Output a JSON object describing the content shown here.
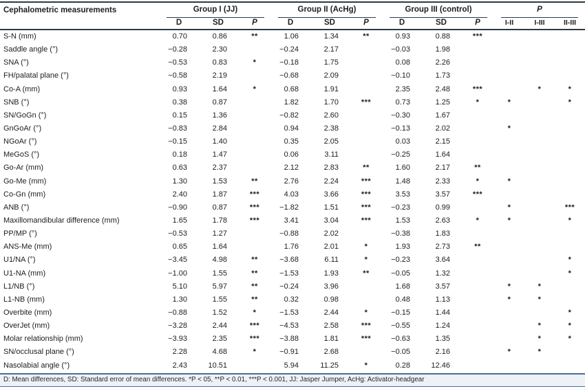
{
  "table": {
    "title_col": "Cephalometric measurements",
    "groups": [
      {
        "label": "Group I (JJ)"
      },
      {
        "label": "Group II (AcHg)"
      },
      {
        "label": "Group III (control)"
      }
    ],
    "p_group_label": "P",
    "sub_headers": {
      "d": "D",
      "sd": "SD",
      "p": "P"
    },
    "p_sub_headers": [
      "I-II",
      "I-III",
      "II-III"
    ],
    "rows": [
      {
        "label": "S-N (mm)",
        "g1": [
          "0.70",
          "0.86",
          "**"
        ],
        "g2": [
          "1.06",
          "1.34",
          "**"
        ],
        "g3": [
          "0.93",
          "0.88",
          "***"
        ],
        "p": [
          "",
          "",
          ""
        ]
      },
      {
        "label": "Saddle angle (°)",
        "g1": [
          "−0.28",
          "2.30",
          ""
        ],
        "g2": [
          "−0.24",
          "2.17",
          ""
        ],
        "g3": [
          "−0.03",
          "1.98",
          ""
        ],
        "p": [
          "",
          "",
          ""
        ]
      },
      {
        "label": "SNA (°)",
        "g1": [
          "−0.53",
          "0.83",
          "*"
        ],
        "g2": [
          "−0.18",
          "1.75",
          ""
        ],
        "g3": [
          "0.08",
          "2.26",
          ""
        ],
        "p": [
          "",
          "",
          ""
        ]
      },
      {
        "label": "FH/palatal plane (°)",
        "g1": [
          "−0.58",
          "2.19",
          ""
        ],
        "g2": [
          "−0.68",
          "2.09",
          ""
        ],
        "g3": [
          "−0.10",
          "1.73",
          ""
        ],
        "p": [
          "",
          "",
          ""
        ]
      },
      {
        "label": "Co-A (mm)",
        "g1": [
          "0.93",
          "1.64",
          "*"
        ],
        "g2": [
          "0.68",
          "1.91",
          ""
        ],
        "g3": [
          "2.35",
          "2.48",
          "***"
        ],
        "p": [
          "",
          "*",
          "*"
        ]
      },
      {
        "label": "SNB (°)",
        "g1": [
          "0.38",
          "0.87",
          ""
        ],
        "g2": [
          "1.82",
          "1.70",
          "***"
        ],
        "g3": [
          "0.73",
          "1.25",
          "*"
        ],
        "p": [
          "*",
          "",
          "*"
        ]
      },
      {
        "label": "SN/GoGn (°)",
        "g1": [
          "0.15",
          "1.36",
          ""
        ],
        "g2": [
          "−0.82",
          "2.60",
          ""
        ],
        "g3": [
          "−0.30",
          "1.67",
          ""
        ],
        "p": [
          "",
          "",
          ""
        ]
      },
      {
        "label": "GnGoAr (°)",
        "g1": [
          "−0.83",
          "2.84",
          ""
        ],
        "g2": [
          "0.94",
          "2.38",
          ""
        ],
        "g3": [
          "−0.13",
          "2.02",
          ""
        ],
        "p": [
          "*",
          "",
          ""
        ]
      },
      {
        "label": "NGoAr (°)",
        "g1": [
          "−0.15",
          "1.40",
          ""
        ],
        "g2": [
          "0.35",
          "2.05",
          ""
        ],
        "g3": [
          "0.03",
          "2.15",
          ""
        ],
        "p": [
          "",
          "",
          ""
        ]
      },
      {
        "label": "MeGoS (°)",
        "g1": [
          "0.18",
          "1.47",
          ""
        ],
        "g2": [
          "0.06",
          "3.11",
          ""
        ],
        "g3": [
          "−0.25",
          "1.64",
          ""
        ],
        "p": [
          "",
          "",
          ""
        ]
      },
      {
        "label": "Go-Ar (mm)",
        "g1": [
          "0.63",
          "2.37",
          ""
        ],
        "g2": [
          "2.12",
          "2.83",
          "**"
        ],
        "g3": [
          "1.60",
          "2.17",
          "**"
        ],
        "p": [
          "",
          "",
          ""
        ]
      },
      {
        "label": "Go-Me (mm)",
        "g1": [
          "1.30",
          "1.53",
          "**"
        ],
        "g2": [
          "2.76",
          "2.24",
          "***"
        ],
        "g3": [
          "1.48",
          "2.33",
          "*"
        ],
        "p": [
          "*",
          "",
          ""
        ]
      },
      {
        "label": "Co-Gn (mm)",
        "g1": [
          "2.40",
          "1.87",
          "***"
        ],
        "g2": [
          "4.03",
          "3.66",
          "***"
        ],
        "g3": [
          "3.53",
          "3.57",
          "***"
        ],
        "p": [
          "",
          "",
          ""
        ]
      },
      {
        "label": "ANB (°)",
        "g1": [
          "−0.90",
          "0.87",
          "***"
        ],
        "g2": [
          "−1.82",
          "1.51",
          "***"
        ],
        "g3": [
          "−0.23",
          "0.99",
          ""
        ],
        "p": [
          "*",
          "",
          "***"
        ]
      },
      {
        "label": "Maxillomandibular difference (mm)",
        "g1": [
          "1.65",
          "1.78",
          "***"
        ],
        "g2": [
          "3.41",
          "3.04",
          "***"
        ],
        "g3": [
          "1.53",
          "2.63",
          "*"
        ],
        "p": [
          "*",
          "",
          "*"
        ]
      },
      {
        "label": "PP/MP (°)",
        "g1": [
          "−0.53",
          "1.27",
          ""
        ],
        "g2": [
          "−0.88",
          "2.02",
          ""
        ],
        "g3": [
          "−0.38",
          "1.83",
          ""
        ],
        "p": [
          "",
          "",
          ""
        ]
      },
      {
        "label": "ANS-Me (mm)",
        "g1": [
          "0.65",
          "1.64",
          ""
        ],
        "g2": [
          "1.76",
          "2.01",
          "*"
        ],
        "g3": [
          "1.93",
          "2.73",
          "**"
        ],
        "p": [
          "",
          "",
          ""
        ]
      },
      {
        "label": "U1/NA (°)",
        "g1": [
          "−3.45",
          "4.98",
          "**"
        ],
        "g2": [
          "−3.68",
          "6.11",
          "*"
        ],
        "g3": [
          "−0.23",
          "3.64",
          ""
        ],
        "p": [
          "",
          "",
          "*"
        ]
      },
      {
        "label": "U1-NA (mm)",
        "g1": [
          "−1.00",
          "1.55",
          "**"
        ],
        "g2": [
          "−1.53",
          "1.93",
          "**"
        ],
        "g3": [
          "−0.05",
          "1.32",
          ""
        ],
        "p": [
          "",
          "",
          "*"
        ]
      },
      {
        "label": "L1/NB (°)",
        "g1": [
          "5.10",
          "5.97",
          "**"
        ],
        "g2": [
          "−0.24",
          "3.96",
          ""
        ],
        "g3": [
          "1.68",
          "3.57",
          ""
        ],
        "p": [
          "*",
          "*",
          ""
        ]
      },
      {
        "label": "L1-NB (mm)",
        "g1": [
          "1.30",
          "1.55",
          "**"
        ],
        "g2": [
          "0.32",
          "0.98",
          ""
        ],
        "g3": [
          "0.48",
          "1.13",
          ""
        ],
        "p": [
          "*",
          "*",
          ""
        ]
      },
      {
        "label": "Overbite (mm)",
        "g1": [
          "−0.88",
          "1.52",
          "*"
        ],
        "g2": [
          "−1.53",
          "2.44",
          "*"
        ],
        "g3": [
          "−0.15",
          "1.44",
          ""
        ],
        "p": [
          "",
          "",
          "*"
        ]
      },
      {
        "label": "OverJet (mm)",
        "g1": [
          "−3.28",
          "2.44",
          "***"
        ],
        "g2": [
          "−4.53",
          "2.58",
          "***"
        ],
        "g3": [
          "−0.55",
          "1.24",
          ""
        ],
        "p": [
          "",
          "*",
          "*"
        ]
      },
      {
        "label": "Molar relationship (mm)",
        "g1": [
          "−3.93",
          "2.35",
          "***"
        ],
        "g2": [
          "−3.88",
          "1.81",
          "***"
        ],
        "g3": [
          "−0.63",
          "1.35",
          ""
        ],
        "p": [
          "",
          "*",
          "*"
        ]
      },
      {
        "label": "SN/occlusal plane (°)",
        "g1": [
          "2.28",
          "4.68",
          "*"
        ],
        "g2": [
          "−0.91",
          "2.68",
          ""
        ],
        "g3": [
          "−0.05",
          "2.16",
          ""
        ],
        "p": [
          "*",
          "*",
          ""
        ]
      },
      {
        "label": "Nasolabial angle (°)",
        "g1": [
          "2.43",
          "10.51",
          ""
        ],
        "g2": [
          "5.94",
          "11.25",
          "*"
        ],
        "g3": [
          "0.28",
          "12.46",
          ""
        ],
        "p": [
          "",
          "",
          ""
        ]
      }
    ],
    "footnote": "D: Mean differences, SD: Standard error of mean differences. *P < 05, **P < 0.01, ***P < 0.001, JJ: Jasper Jumper, AcHg: Activator-headgear"
  },
  "colors": {
    "rule_dark": "#2c3944",
    "rule_blue": "#4a6d9c",
    "footnote_bg": "#eef2f6",
    "text": "#1d1d1f"
  }
}
